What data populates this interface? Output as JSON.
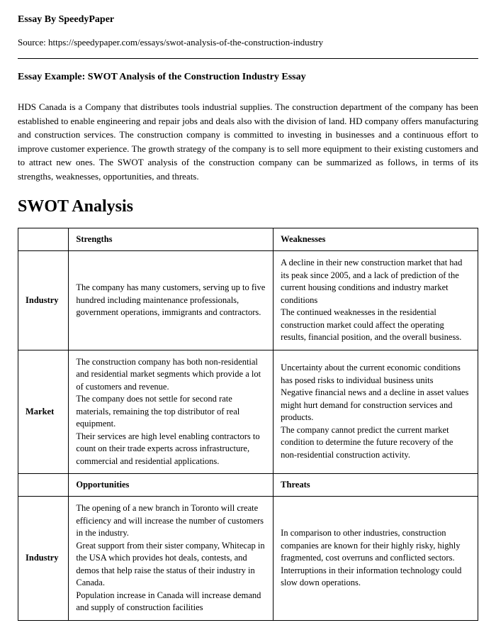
{
  "header": {
    "byline": "Essay By SpeedyPaper",
    "source_prefix": "Source: ",
    "source_url": "https://speedypaper.com/essays/swot-analysis-of-the-construction-industry"
  },
  "essay": {
    "title": "Essay Example: SWOT Analysis of the Construction Industry Essay",
    "intro_paragraph": "HDS Canada is a Company that distributes tools industrial supplies. The construction department of the company has been established to enable engineering and repair jobs and deals also with the division of land. HD company offers manufacturing and construction services. The construction company is committed to investing in businesses and a continuous effort to improve customer experience. The growth strategy of the company is to sell more equipment to their existing customers and to attract new ones. The SWOT analysis of the construction company can be summarized as follows, in terms of its strengths, weaknesses, opportunities, and threats.",
    "section_heading": "SWOT Analysis"
  },
  "swot_table": {
    "headers_sw": {
      "strengths": "Strengths",
      "weaknesses": "Weaknesses"
    },
    "headers_ot": {
      "opportunities": "Opportunities",
      "threats": "Threats"
    },
    "row_labels": {
      "industry": "Industry",
      "market": "Market"
    },
    "industry_sw": {
      "strengths": "The company has many customers, serving up to five hundred including maintenance professionals, government operations, immigrants and contractors.",
      "weaknesses": "A decline in their new construction market that had its peak since 2005, and a lack of prediction of the current housing conditions and industry market conditions\nThe continued weaknesses in the residential construction market could affect the operating results, financial position, and the overall business."
    },
    "market_sw": {
      "strengths": "The construction company has both non-residential and residential market segments which provide a lot of customers and revenue.\nThe company does not settle for second rate materials, remaining the top distributor of real equipment.\nTheir services are high level enabling contractors to count on their trade experts across infrastructure, commercial and residential applications.",
      "weaknesses": "Uncertainty about the current economic conditions has posed risks to individual business units\nNegative financial news and a decline in asset values might hurt demand for construction services and products.\nThe company cannot predict the current market condition to determine the future recovery of the non-residential construction activity."
    },
    "industry_ot": {
      "opportunities": "The opening of a new branch in Toronto will create efficiency and will increase the number of customers in the industry.\nGreat support from their sister company, Whitecap in the USA which provides hot deals, contests, and demos that help raise the status of their industry in Canada.\nPopulation increase in Canada will increase demand and supply of construction facilities",
      "threats": "In comparison to other industries, construction companies are known for their highly risky, highly fragmented, cost overruns and conflicted sectors.\nInterruptions in their information technology could slow down operations."
    }
  },
  "styles": {
    "text_color": "#000000",
    "background_color": "#ffffff",
    "border_color": "#000000",
    "body_font_size": 13,
    "table_font_size": 12.5,
    "heading_font_size": 24,
    "title_font_size": 14
  }
}
